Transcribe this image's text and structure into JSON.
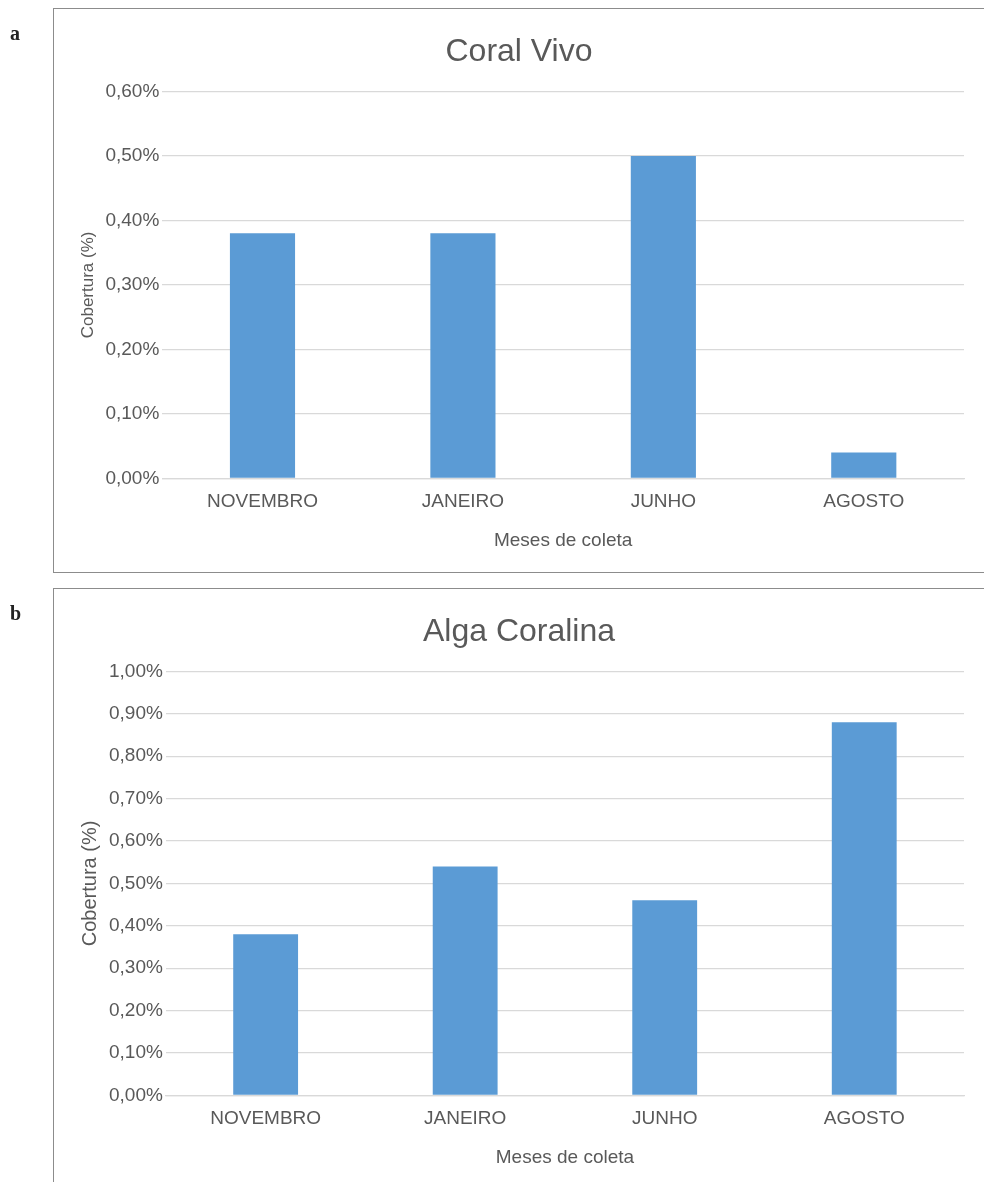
{
  "chart_data": [
    {
      "type": "bar",
      "title": "Coral Vivo",
      "xlabel": "Meses de coleta",
      "ylabel": "Cobertura (%)",
      "annotations": [
        "a"
      ],
      "categories": [
        "NOVEMBRO",
        "JANEIRO",
        "JUNHO",
        "AGOSTO"
      ],
      "values": [
        0.38,
        0.38,
        0.5,
        0.04
      ],
      "color": "#5b9bd5",
      "ylim": [
        0,
        0.6
      ],
      "yticks": [
        {
          "value": 0,
          "label": "0,00%"
        },
        {
          "value": 0.1,
          "label": "0,10%"
        },
        {
          "value": 0.2,
          "label": "0,20%"
        },
        {
          "value": 0.3,
          "label": "0,30%"
        },
        {
          "value": 0.4,
          "label": "0,40%"
        },
        {
          "value": 0.5,
          "label": "0,50%"
        },
        {
          "value": 0.6,
          "label": "0,60%"
        }
      ],
      "grid": "y",
      "legend": false
    },
    {
      "type": "bar",
      "title": "Alga Coralina",
      "xlabel": "Meses de coleta",
      "ylabel": "Cobertura (%)",
      "annotations": [
        "b"
      ],
      "categories": [
        "NOVEMBRO",
        "JANEIRO",
        "JUNHO",
        "AGOSTO"
      ],
      "values": [
        0.38,
        0.54,
        0.46,
        0.88
      ],
      "color": "#5b9bd5",
      "ylim": [
        0,
        1
      ],
      "yticks": [
        {
          "value": 0,
          "label": "0,00%"
        },
        {
          "value": 0.1,
          "label": "0,10%"
        },
        {
          "value": 0.2,
          "label": "0,20%"
        },
        {
          "value": 0.3,
          "label": "0,30%"
        },
        {
          "value": 0.4,
          "label": "0,40%"
        },
        {
          "value": 0.5,
          "label": "0,50%"
        },
        {
          "value": 0.6,
          "label": "0,60%"
        },
        {
          "value": 0.7,
          "label": "0,70%"
        },
        {
          "value": 0.8,
          "label": "0,80%"
        },
        {
          "value": 0.9,
          "label": "0,90%"
        },
        {
          "value": 1,
          "label": "1,00%"
        }
      ],
      "grid": "y",
      "legend": false
    }
  ]
}
